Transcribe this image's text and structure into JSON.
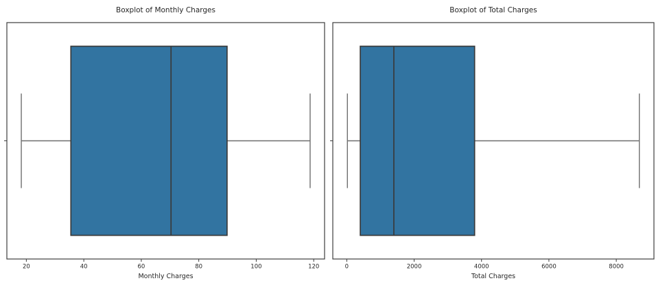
{
  "chart_data": [
    {
      "type": "box",
      "orientation": "horizontal",
      "title": "Boxplot of Monthly Charges",
      "xlabel": "Monthly Charges",
      "ylabel": "",
      "xlim": [
        13.225,
        123.775
      ],
      "xticks": [
        20,
        40,
        60,
        80,
        100,
        120
      ],
      "xtick_labels": [
        "20",
        "40",
        "60",
        "80",
        "100",
        "120"
      ],
      "grid": false,
      "stats": {
        "whisker_low": 18.25,
        "q1": 35.5,
        "median": 70.35,
        "q3": 89.85,
        "whisker_high": 118.75
      },
      "colors": {
        "box_fill": "#3274a1",
        "box_edge": "#3a3a3a",
        "median": "#3a3a3a",
        "whisker": "#6e6e6e",
        "spine": "#3c3c3c",
        "text": "#262626"
      }
    },
    {
      "type": "box",
      "orientation": "horizontal",
      "title": "Boxplot of Total Charges",
      "xlabel": "Total Charges",
      "ylabel": "",
      "xlim": [
        -414.5,
        9118.1
      ],
      "xticks": [
        0,
        2000,
        4000,
        6000,
        8000
      ],
      "xtick_labels": [
        "0",
        "2000",
        "4000",
        "6000",
        "8000"
      ],
      "grid": false,
      "stats": {
        "whisker_low": 18.8,
        "q1": 401.45,
        "median": 1397.475,
        "q3": 3794.7,
        "whisker_high": 8684.8
      },
      "colors": {
        "box_fill": "#3274a1",
        "box_edge": "#3a3a3a",
        "median": "#3a3a3a",
        "whisker": "#6e6e6e",
        "spine": "#3c3c3c",
        "text": "#262626"
      }
    }
  ]
}
